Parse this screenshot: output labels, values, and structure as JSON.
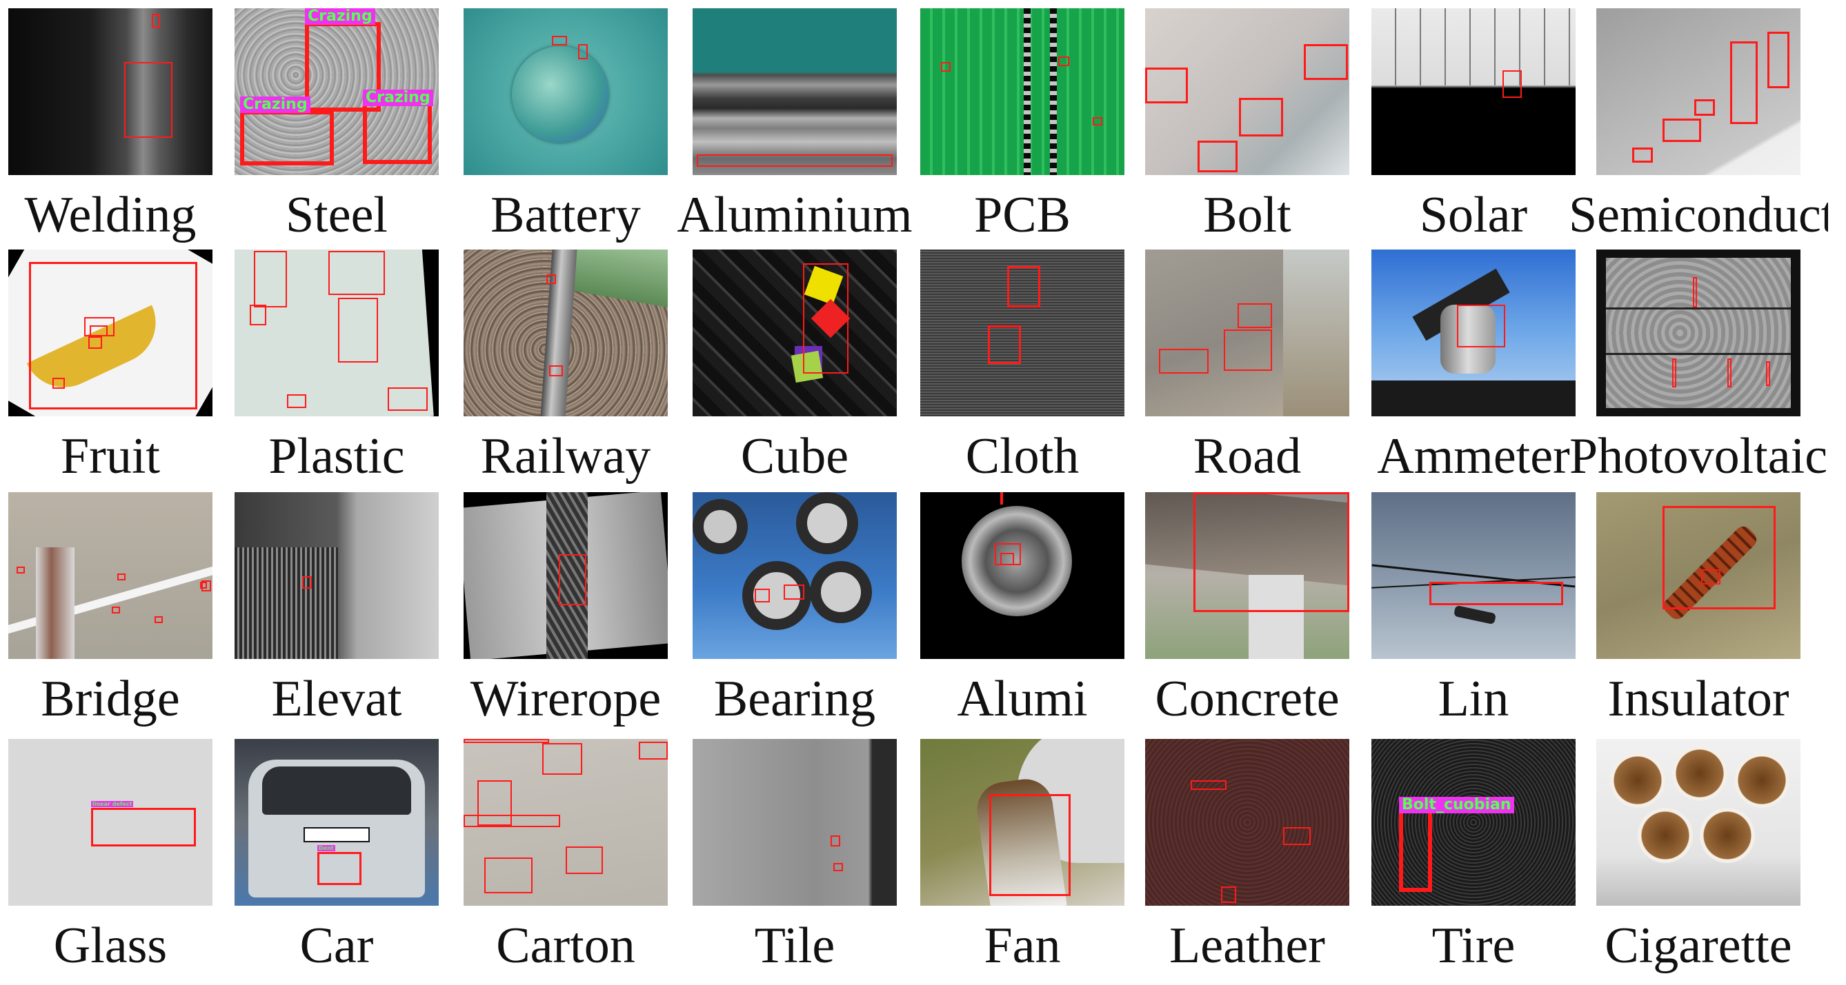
{
  "panels": [
    {
      "label": "Welding",
      "tags": []
    },
    {
      "label": "Steel",
      "tags": [
        "Crazing",
        "Crazing",
        "Crazing"
      ]
    },
    {
      "label": "Battery",
      "tags": []
    },
    {
      "label": "Aluminium",
      "tags": []
    },
    {
      "label": "PCB",
      "tags": []
    },
    {
      "label": "Bolt",
      "tags": []
    },
    {
      "label": "Solar",
      "tags": []
    },
    {
      "label": "Semiconduct",
      "tags": []
    },
    {
      "label": "Fruit",
      "tags": []
    },
    {
      "label": "Plastic",
      "tags": []
    },
    {
      "label": "Railway",
      "tags": []
    },
    {
      "label": "Cube",
      "tags": []
    },
    {
      "label": "Cloth",
      "tags": []
    },
    {
      "label": "Road",
      "tags": []
    },
    {
      "label": "Ammeter",
      "tags": []
    },
    {
      "label": "Photovoltaic",
      "tags": []
    },
    {
      "label": "Bridge",
      "tags": []
    },
    {
      "label": "Elevat",
      "tags": []
    },
    {
      "label": "Wirerope",
      "tags": []
    },
    {
      "label": "Bearing",
      "tags": []
    },
    {
      "label": "Alumi",
      "tags": []
    },
    {
      "label": "Concrete",
      "tags": []
    },
    {
      "label": "Lin",
      "tags": []
    },
    {
      "label": "Insulator",
      "tags": []
    },
    {
      "label": "Glass",
      "tags": [
        "linear defect"
      ]
    },
    {
      "label": "Car",
      "tags": [
        "Dent"
      ]
    },
    {
      "label": "Carton",
      "tags": []
    },
    {
      "label": "Tile",
      "tags": []
    },
    {
      "label": "Fan",
      "tags": []
    },
    {
      "label": "Leather",
      "tags": []
    },
    {
      "label": "Tire",
      "tags": [
        "Bolt_cuobian"
      ]
    },
    {
      "label": "Cigarette",
      "tags": []
    }
  ]
}
